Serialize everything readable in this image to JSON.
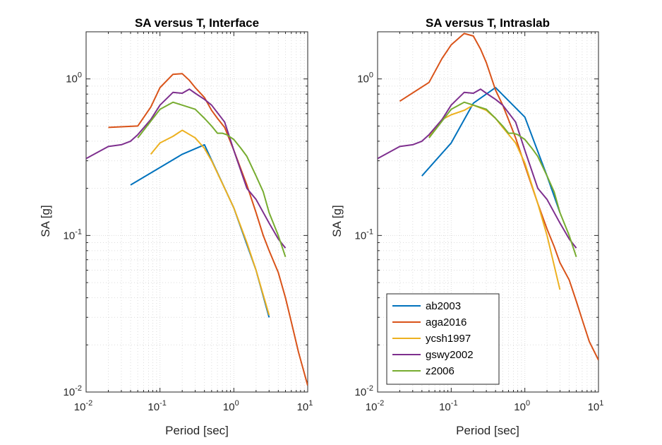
{
  "colors": {
    "ab2003": "#0072BD",
    "aga2016": "#D95319",
    "ycsh1997": "#EDB120",
    "gswy2002": "#7E2F8E",
    "z2006": "#77AC30",
    "axis": "#262626",
    "grid": "#dcdcdc"
  },
  "chart_data": [
    {
      "type": "line",
      "title": "SA versus T, Interface",
      "xlabel": "Period [sec]",
      "ylabel": "SA [g]",
      "xscale": "log",
      "yscale": "log",
      "xlim": [
        0.01,
        10
      ],
      "ylim": [
        0.01,
        2
      ],
      "grid": "on (major and minor)",
      "x_ticks": [
        {
          "base": "10",
          "exp": "-2"
        },
        {
          "base": "10",
          "exp": "-1"
        },
        {
          "base": "10",
          "exp": "0"
        },
        {
          "base": "10",
          "exp": "1"
        }
      ],
      "y_ticks": [
        {
          "base": "10",
          "exp": "-2"
        },
        {
          "base": "10",
          "exp": "-1"
        },
        {
          "base": "10",
          "exp": "0"
        }
      ],
      "series": [
        {
          "name": "ab2003",
          "x": [
            0.04,
            0.2,
            0.4,
            1.0,
            2.0,
            3.0
          ],
          "y": [
            0.21,
            0.33,
            0.38,
            0.15,
            0.06,
            0.03
          ]
        },
        {
          "name": "aga2016",
          "x": [
            0.02,
            0.05,
            0.075,
            0.1,
            0.15,
            0.2,
            0.25,
            0.3,
            0.4,
            0.5,
            0.6,
            0.75,
            1.0,
            1.5,
            2.0,
            2.5,
            3.0,
            4.0,
            5.0,
            6.0,
            7.5,
            10.0
          ],
          "y": [
            0.49,
            0.5,
            0.66,
            0.88,
            1.07,
            1.08,
            0.98,
            0.88,
            0.76,
            0.63,
            0.56,
            0.49,
            0.35,
            0.21,
            0.14,
            0.1,
            0.08,
            0.058,
            0.04,
            0.028,
            0.018,
            0.011
          ]
        },
        {
          "name": "ycsh1997",
          "x": [
            0.075,
            0.1,
            0.15,
            0.2,
            0.3,
            0.4,
            0.5,
            0.75,
            1.0,
            1.5,
            2.0,
            3.0
          ],
          "y": [
            0.33,
            0.39,
            0.43,
            0.47,
            0.42,
            0.36,
            0.3,
            0.2,
            0.15,
            0.09,
            0.06,
            0.031
          ]
        },
        {
          "name": "gswy2002",
          "x": [
            0.01,
            0.02,
            0.03,
            0.04,
            0.05,
            0.075,
            0.1,
            0.15,
            0.2,
            0.25,
            0.3,
            0.4,
            0.5,
            0.75,
            1.0,
            1.5,
            2.0,
            3.0,
            4.0,
            5.0
          ],
          "y": [
            0.31,
            0.37,
            0.38,
            0.4,
            0.44,
            0.55,
            0.68,
            0.82,
            0.81,
            0.86,
            0.81,
            0.74,
            0.68,
            0.53,
            0.35,
            0.2,
            0.17,
            0.12,
            0.095,
            0.083
          ]
        },
        {
          "name": "z2006",
          "x": [
            0.05,
            0.1,
            0.15,
            0.2,
            0.3,
            0.4,
            0.5,
            0.6,
            0.7,
            0.8,
            1.0,
            1.25,
            1.5,
            2.0,
            2.5,
            3.0,
            4.0,
            5.0
          ],
          "y": [
            0.42,
            0.64,
            0.71,
            0.68,
            0.64,
            0.56,
            0.5,
            0.45,
            0.45,
            0.44,
            0.41,
            0.36,
            0.32,
            0.24,
            0.19,
            0.14,
            0.1,
            0.073
          ]
        }
      ]
    },
    {
      "type": "line",
      "title": "SA versus T, Intraslab",
      "xlabel": "Period [sec]",
      "ylabel": "SA [g]",
      "xscale": "log",
      "yscale": "log",
      "xlim": [
        0.01,
        10
      ],
      "ylim": [
        0.01,
        2
      ],
      "grid": "on (major and minor)",
      "legend_placement": "bottom-left",
      "x_ticks": [
        {
          "base": "10",
          "exp": "-2"
        },
        {
          "base": "10",
          "exp": "-1"
        },
        {
          "base": "10",
          "exp": "0"
        },
        {
          "base": "10",
          "exp": "1"
        }
      ],
      "y_ticks": [
        {
          "base": "10",
          "exp": "-2"
        },
        {
          "base": "10",
          "exp": "-1"
        },
        {
          "base": "10",
          "exp": "0"
        }
      ],
      "series": [
        {
          "name": "ab2003",
          "x": [
            0.04,
            0.1,
            0.2,
            0.4,
            1.0,
            2.0,
            3.0
          ],
          "y": [
            0.24,
            0.39,
            0.7,
            0.88,
            0.57,
            0.24,
            0.14
          ]
        },
        {
          "name": "aga2016",
          "x": [
            0.02,
            0.05,
            0.075,
            0.1,
            0.15,
            0.2,
            0.25,
            0.3,
            0.4,
            0.5,
            0.6,
            0.75,
            1.0,
            1.5,
            2.0,
            2.5,
            3.0,
            4.0,
            5.0,
            6.0,
            7.5,
            10.0
          ],
          "y": [
            0.72,
            0.95,
            1.35,
            1.65,
            1.95,
            1.88,
            1.55,
            1.27,
            0.85,
            0.68,
            0.55,
            0.42,
            0.28,
            0.16,
            0.11,
            0.085,
            0.067,
            0.052,
            0.038,
            0.029,
            0.021,
            0.016
          ]
        },
        {
          "name": "ycsh1997",
          "x": [
            0.05,
            0.075,
            0.1,
            0.15,
            0.2,
            0.3,
            0.4,
            0.5,
            0.75,
            1.0,
            1.5,
            2.0,
            3.0
          ],
          "y": [
            0.43,
            0.55,
            0.59,
            0.63,
            0.68,
            0.63,
            0.56,
            0.49,
            0.39,
            0.29,
            0.16,
            0.1,
            0.045
          ]
        },
        {
          "name": "gswy2002",
          "x": [
            0.01,
            0.02,
            0.03,
            0.04,
            0.05,
            0.075,
            0.1,
            0.15,
            0.2,
            0.25,
            0.3,
            0.4,
            0.5,
            0.75,
            1.0,
            1.5,
            2.0,
            3.0,
            4.0,
            5.0
          ],
          "y": [
            0.31,
            0.37,
            0.38,
            0.4,
            0.44,
            0.55,
            0.68,
            0.82,
            0.81,
            0.86,
            0.81,
            0.74,
            0.68,
            0.53,
            0.35,
            0.2,
            0.17,
            0.12,
            0.095,
            0.083
          ]
        },
        {
          "name": "z2006",
          "x": [
            0.05,
            0.1,
            0.15,
            0.2,
            0.3,
            0.4,
            0.5,
            0.6,
            0.7,
            0.8,
            1.0,
            1.25,
            1.5,
            2.0,
            2.5,
            3.0,
            4.0,
            5.0
          ],
          "y": [
            0.42,
            0.64,
            0.71,
            0.68,
            0.64,
            0.56,
            0.5,
            0.45,
            0.45,
            0.44,
            0.41,
            0.36,
            0.32,
            0.24,
            0.19,
            0.14,
            0.1,
            0.073
          ]
        }
      ]
    }
  ]
}
